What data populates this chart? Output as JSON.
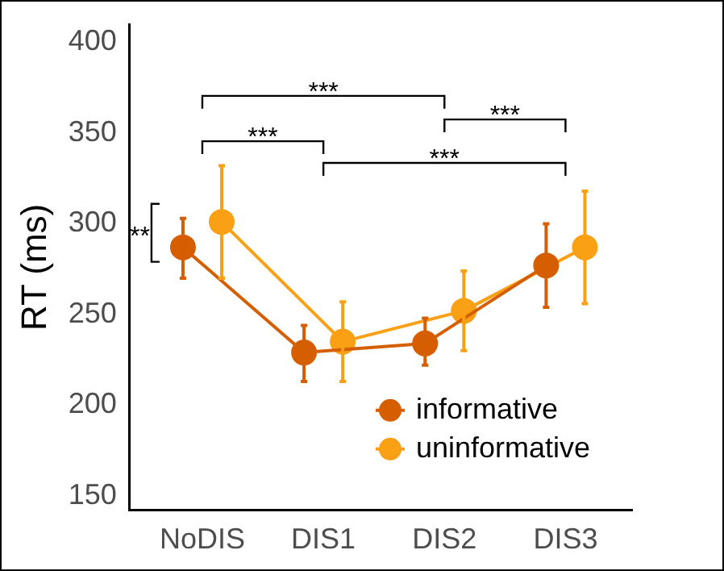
{
  "chart_data": {
    "type": "line",
    "ylabel": "RT (ms)",
    "categories": [
      "NoDIS",
      "DIS1",
      "DIS2",
      "DIS3"
    ],
    "series": [
      {
        "name": "informative",
        "color": "#d55e00",
        "values": [
          287,
          229,
          234,
          277
        ],
        "errors": [
          [
            270,
            303
          ],
          [
            213,
            244
          ],
          [
            222,
            248
          ],
          [
            254,
            300
          ]
        ]
      },
      {
        "name": "uninformative",
        "color": "#f9a014",
        "values": [
          301,
          235,
          252,
          287
        ],
        "errors": [
          [
            270,
            332
          ],
          [
            213,
            257
          ],
          [
            230,
            274
          ],
          [
            256,
            318
          ]
        ]
      }
    ],
    "ylim": [
      142,
      410
    ],
    "yticks": [
      150,
      200,
      250,
      300,
      350,
      400
    ],
    "grid": false,
    "legend": "bottom right",
    "marker": "circle",
    "line_style": "solid",
    "annotations": [
      "***",
      "***",
      "***",
      "***",
      "**"
    ]
  }
}
